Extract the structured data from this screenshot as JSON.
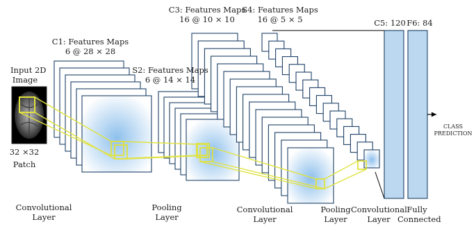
{
  "colors": {
    "map_fill": "#ffffff",
    "map_stroke": "#1c3f66",
    "map_glow": "#8ec0ec",
    "fc_fill": "#bcd8f0",
    "highlight": "#e0e23c",
    "line": "#000000"
  },
  "input": {
    "title_line1": "Input 2D",
    "title_line2": "Image",
    "size": "32 ×32",
    "patch": "Patch",
    "icon": "brain-mri-slice"
  },
  "c1": {
    "title": "C1: Features Maps",
    "dims": "6 @ 28 × 28"
  },
  "s2": {
    "title": "S2: Features Maps",
    "dims": "6 @ 14 × 14"
  },
  "c3": {
    "title": "C3: Features Maps",
    "dims": "16 @ 10 × 10"
  },
  "s4": {
    "title": "S4: Features Maps",
    "dims": "16 @ 5 × 5"
  },
  "c5": {
    "title": "C5: 120"
  },
  "f6": {
    "title": "F6: 84"
  },
  "output": {
    "line1": "CLASS",
    "line2": "PREDICTION"
  },
  "layers": {
    "conv1": {
      "line1": "Convolutional",
      "line2": "Layer"
    },
    "pool1": {
      "line1": "Pooling",
      "line2": "Layer"
    },
    "conv2": {
      "line1": "Convolutional",
      "line2": "Layer"
    },
    "pool2": {
      "line1": "Pooling",
      "line2": "Layer"
    },
    "conv3": {
      "line1": "Convolutional",
      "line2": "Layer"
    },
    "fc": {
      "line1": "Fully",
      "line2": "Connected"
    }
  }
}
